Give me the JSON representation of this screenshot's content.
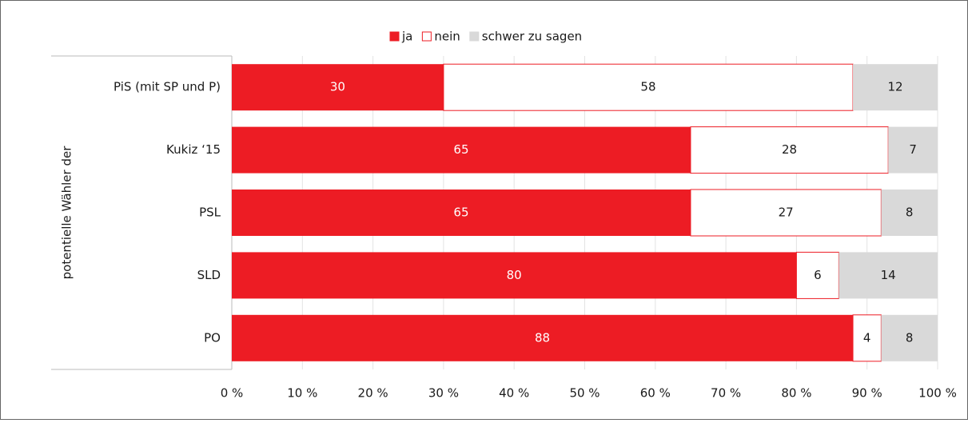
{
  "chart_data": {
    "type": "stacked-bar-horizontal",
    "y_axis_label": "potentielle Wähler der",
    "categories": [
      "PiS (mit SP und P)",
      "Kukiz ‘15",
      "PSL",
      "SLD",
      "PO"
    ],
    "series": [
      {
        "name": "ja",
        "color": "#ed1c24",
        "values": [
          30,
          65,
          65,
          80,
          88
        ]
      },
      {
        "name": "nein",
        "color": "#ffffff",
        "values": [
          58,
          28,
          27,
          6,
          4
        ]
      },
      {
        "name": "schwer zu sagen",
        "color": "#d9d9d9",
        "values": [
          12,
          7,
          8,
          14,
          8
        ]
      }
    ],
    "xlim": [
      0,
      100
    ],
    "xticks": [
      {
        "value": 0,
        "label": "0 %"
      },
      {
        "value": 10,
        "label": "10 %"
      },
      {
        "value": 20,
        "label": "20 %"
      },
      {
        "value": 30,
        "label": "30 %"
      },
      {
        "value": 40,
        "label": "40 %"
      },
      {
        "value": 50,
        "label": "50 %"
      },
      {
        "value": 60,
        "label": "60 %"
      },
      {
        "value": 70,
        "label": "70 %"
      },
      {
        "value": 80,
        "label": "80 %"
      },
      {
        "value": 90,
        "label": "90 %"
      },
      {
        "value": 100,
        "label": "100 %"
      }
    ],
    "grid": true,
    "legend": "top"
  }
}
